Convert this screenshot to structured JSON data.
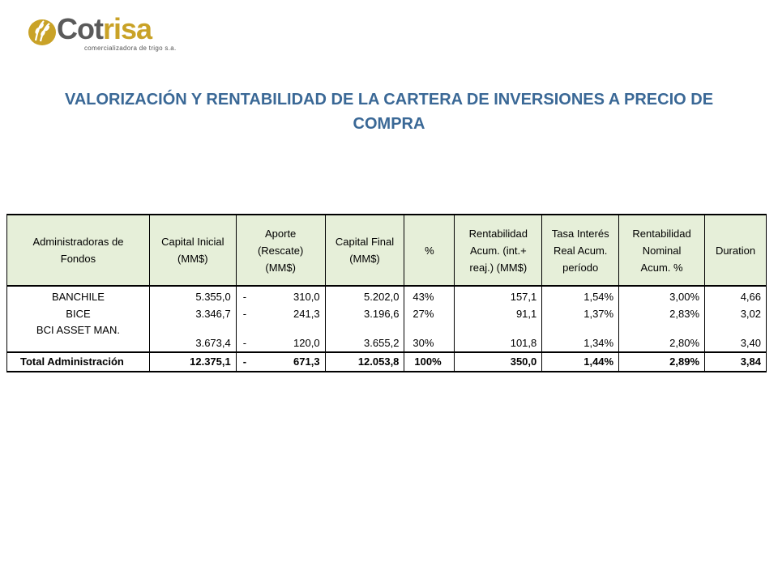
{
  "brand": {
    "name_prefix": "Cot",
    "name_accent": "risa",
    "tagline": "comercializadora de trigo s.a."
  },
  "title": {
    "line1": "VALORIZACIÓN Y RENTABILIDAD  DE LA CARTERA DE INVERSIONES A PRECIO DE",
    "line2": "COMPRA"
  },
  "table": {
    "headers": [
      [
        "Administradoras de",
        "Fondos"
      ],
      [
        "Capital Inicial",
        "(MM$)"
      ],
      [
        "Aporte",
        "(Rescate)",
        "(MM$)"
      ],
      [
        "Capital Final",
        "(MM$)"
      ],
      [
        "%"
      ],
      [
        "Rentabilidad",
        "Acum. (int.+",
        "reaj.) (MM$)"
      ],
      [
        "Tasa Interés",
        "Real Acum.",
        "período"
      ],
      [
        "Rentabilidad",
        "Nominal",
        "Acum. %"
      ],
      [
        "Duration"
      ]
    ],
    "rows": [
      {
        "name": "BANCHILE",
        "capital_inicial": "5.355,0",
        "aporte_sign": "-",
        "aporte": "310,0",
        "capital_final": "5.202,0",
        "pct": "43%",
        "rent_acum": "157,1",
        "tasa_real": "1,54%",
        "rent_nominal": "3,00%",
        "duration": "4,66"
      },
      {
        "name": "BICE",
        "capital_inicial": "3.346,7",
        "aporte_sign": "-",
        "aporte": "241,3",
        "capital_final": "3.196,6",
        "pct": "27%",
        "rent_acum": "91,1",
        "tasa_real": "1,37%",
        "rent_nominal": "2,83%",
        "duration": "3,02"
      },
      {
        "name": "BCI ASSET MAN.",
        "capital_inicial": "3.673,4",
        "aporte_sign": "-",
        "aporte": "120,0",
        "capital_final": "3.655,2",
        "pct": "30%",
        "rent_acum": "101,8",
        "tasa_real": "1,34%",
        "rent_nominal": "2,80%",
        "duration": "3,40"
      }
    ],
    "total": {
      "name": "Total Administración",
      "capital_inicial": "12.375,1",
      "aporte_sign": "-",
      "aporte": "671,3",
      "capital_final": "12.053,8",
      "pct": "100%",
      "rent_acum": "350,0",
      "tasa_real": "1,44%",
      "rent_nominal": "2,89%",
      "duration": "3,84"
    }
  },
  "colors": {
    "title": "#3a6896",
    "header_fill": "#e6efd9",
    "logo_gold": "#c9a227",
    "logo_gray": "#5a5a5a"
  },
  "icons": {
    "logo": "wheat-ears-icon"
  }
}
